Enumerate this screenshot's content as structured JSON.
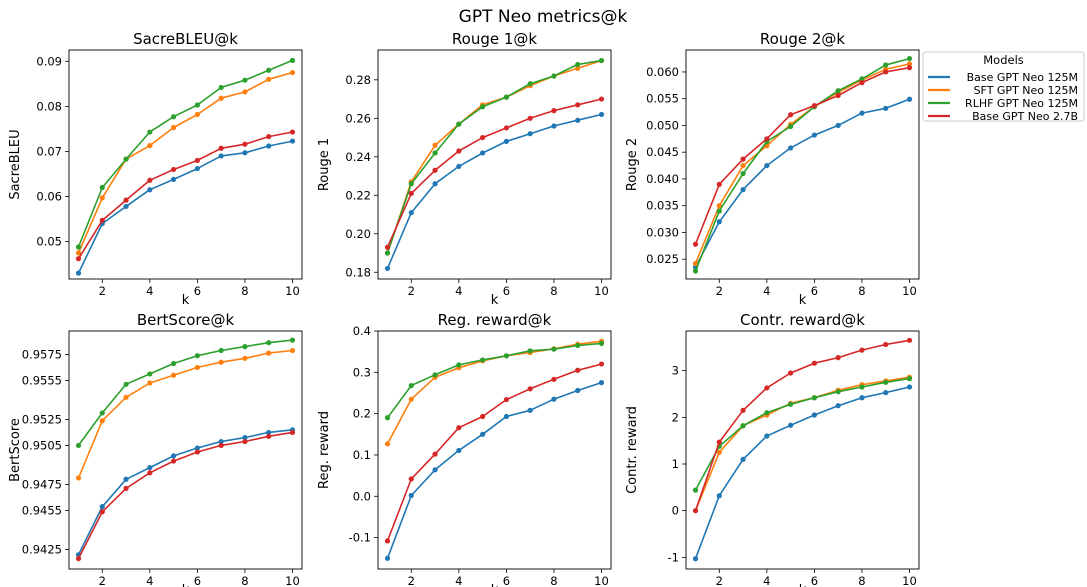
{
  "figure": {
    "suptitle": "GPT Neo metrics@k"
  },
  "legend": {
    "title": "Models",
    "placement": "right of top-right panel",
    "entries": [
      {
        "label": "Base GPT Neo 125M",
        "color": "#1f77b4"
      },
      {
        "label": "SFT GPT Neo 125M",
        "color": "#ff7f0e"
      },
      {
        "label": "RLHF GPT Neo 125M",
        "color": "#2ca02c"
      },
      {
        "label": "Base GPT Neo 2.7B",
        "color": "#d62728"
      }
    ]
  },
  "chart_data": [
    {
      "type": "line",
      "title": "SacreBLEU@k",
      "xlabel": "k",
      "ylabel": "SacreBLEU",
      "x": [
        1,
        2,
        3,
        4,
        5,
        6,
        7,
        8,
        9,
        10
      ],
      "xticks": [
        2,
        4,
        6,
        8,
        10
      ],
      "xlim": [
        0.6,
        10.4
      ],
      "ylim": [
        0.0417,
        0.0925
      ],
      "yticks": [
        0.05,
        0.06,
        0.07,
        0.08,
        0.09
      ],
      "ytick_labels": [
        "0.05",
        "0.06",
        "0.07",
        "0.08",
        "0.09"
      ],
      "series": [
        {
          "name": "Base GPT Neo 125M",
          "values": [
            0.043,
            0.054,
            0.0578,
            0.0615,
            0.0638,
            0.0662,
            0.069,
            0.0697,
            0.0712,
            0.0723
          ]
        },
        {
          "name": "SFT GPT Neo 125M",
          "values": [
            0.0475,
            0.0597,
            0.0683,
            0.0713,
            0.0753,
            0.0782,
            0.0818,
            0.0832,
            0.086,
            0.0875
          ]
        },
        {
          "name": "RLHF GPT Neo 125M",
          "values": [
            0.0488,
            0.062,
            0.0683,
            0.0743,
            0.0777,
            0.0803,
            0.0842,
            0.0858,
            0.088,
            0.0902
          ]
        },
        {
          "name": "Base GPT Neo 2.7B",
          "values": [
            0.0462,
            0.0547,
            0.0592,
            0.0636,
            0.066,
            0.068,
            0.0707,
            0.0716,
            0.0733,
            0.0743
          ]
        }
      ]
    },
    {
      "type": "line",
      "title": "Rouge 1@k",
      "xlabel": "k",
      "ylabel": "Rouge 1",
      "x": [
        1,
        2,
        3,
        4,
        5,
        6,
        7,
        8,
        9,
        10
      ],
      "xticks": [
        2,
        4,
        6,
        8,
        10
      ],
      "xlim": [
        0.6,
        10.4
      ],
      "ylim": [
        0.1765,
        0.2955
      ],
      "yticks": [
        0.18,
        0.2,
        0.22,
        0.24,
        0.26,
        0.28
      ],
      "ytick_labels": [
        "0.18",
        "0.20",
        "0.22",
        "0.24",
        "0.26",
        "0.28"
      ],
      "series": [
        {
          "name": "Base GPT Neo 125M",
          "values": [
            0.182,
            0.211,
            0.226,
            0.235,
            0.242,
            0.248,
            0.252,
            0.256,
            0.259,
            0.262
          ]
        },
        {
          "name": "SFT GPT Neo 125M",
          "values": [
            0.19,
            0.227,
            0.246,
            0.257,
            0.267,
            0.271,
            0.277,
            0.282,
            0.286,
            0.29
          ]
        },
        {
          "name": "RLHF GPT Neo 125M",
          "values": [
            0.19,
            0.226,
            0.242,
            0.257,
            0.266,
            0.271,
            0.278,
            0.282,
            0.288,
            0.29
          ]
        },
        {
          "name": "Base GPT Neo 2.7B",
          "values": [
            0.193,
            0.221,
            0.233,
            0.243,
            0.25,
            0.255,
            0.26,
            0.264,
            0.267,
            0.27
          ]
        }
      ]
    },
    {
      "type": "line",
      "title": "Rouge 2@k",
      "xlabel": "k",
      "ylabel": "Rouge 2",
      "x": [
        1,
        2,
        3,
        4,
        5,
        6,
        7,
        8,
        9,
        10
      ],
      "xticks": [
        2,
        4,
        6,
        8,
        10
      ],
      "xlim": [
        0.6,
        10.4
      ],
      "ylim": [
        0.0213,
        0.0641
      ],
      "yticks": [
        0.025,
        0.03,
        0.035,
        0.04,
        0.045,
        0.05,
        0.055,
        0.06
      ],
      "ytick_labels": [
        "0.025",
        "0.030",
        "0.035",
        "0.040",
        "0.045",
        "0.050",
        "0.055",
        "0.060"
      ],
      "series": [
        {
          "name": "Base GPT Neo 125M",
          "values": [
            0.0235,
            0.032,
            0.038,
            0.0425,
            0.0458,
            0.0482,
            0.05,
            0.0523,
            0.0532,
            0.0549
          ]
        },
        {
          "name": "SFT GPT Neo 125M",
          "values": [
            0.0242,
            0.035,
            0.0425,
            0.0462,
            0.0502,
            0.0535,
            0.0562,
            0.0585,
            0.0605,
            0.0615
          ]
        },
        {
          "name": "RLHF GPT Neo 125M",
          "values": [
            0.0228,
            0.034,
            0.041,
            0.047,
            0.0498,
            0.0535,
            0.0565,
            0.0587,
            0.0613,
            0.0625
          ]
        },
        {
          "name": "Base GPT Neo 2.7B",
          "values": [
            0.0278,
            0.039,
            0.0437,
            0.0475,
            0.052,
            0.0537,
            0.0556,
            0.058,
            0.06,
            0.0608
          ]
        }
      ]
    },
    {
      "type": "line",
      "title": "BertScore@k",
      "xlabel": "k",
      "ylabel": "BertScore",
      "x": [
        1,
        2,
        3,
        4,
        5,
        6,
        7,
        8,
        9,
        10
      ],
      "xticks": [
        2,
        4,
        6,
        8,
        10
      ],
      "xlim": [
        0.6,
        10.4
      ],
      "ylim": [
        0.941,
        0.9593
      ],
      "yticks": [
        0.9425,
        0.9455,
        0.9475,
        0.9505,
        0.9525,
        0.9555,
        0.9575
      ],
      "ytick_labels": [
        "0.9425",
        "0.9455",
        "0.9475",
        "0.9505",
        "0.9525",
        "0.9555",
        "0.9575"
      ],
      "series": [
        {
          "name": "Base GPT Neo 125M",
          "values": [
            0.9421,
            0.9458,
            0.9479,
            0.9488,
            0.9497,
            0.9503,
            0.9508,
            0.9511,
            0.9515,
            0.9517
          ]
        },
        {
          "name": "SFT GPT Neo 125M",
          "values": [
            0.948,
            0.9524,
            0.9542,
            0.9553,
            0.9559,
            0.9565,
            0.9569,
            0.9572,
            0.9576,
            0.9578
          ]
        },
        {
          "name": "RLHF GPT Neo 125M",
          "values": [
            0.9505,
            0.953,
            0.9552,
            0.956,
            0.9568,
            0.9574,
            0.9578,
            0.9581,
            0.9584,
            0.9586
          ]
        },
        {
          "name": "Base GPT Neo 2.7B",
          "values": [
            0.9418,
            0.9454,
            0.9472,
            0.9484,
            0.9493,
            0.95,
            0.9505,
            0.9508,
            0.9512,
            0.9515
          ]
        }
      ]
    },
    {
      "type": "line",
      "title": "Reg. reward@k",
      "xlabel": "k",
      "ylabel": "Reg. reward",
      "x": [
        1,
        2,
        3,
        4,
        5,
        6,
        7,
        8,
        9,
        10
      ],
      "xticks": [
        2,
        4,
        6,
        8,
        10
      ],
      "xlim": [
        0.6,
        10.4
      ],
      "ylim": [
        -0.176,
        0.4
      ],
      "yticks": [
        -0.1,
        0.0,
        0.1,
        0.2,
        0.3,
        0.4
      ],
      "ytick_labels": [
        "-0.1",
        "0.0",
        "0.1",
        "0.2",
        "0.3",
        "0.4"
      ],
      "series": [
        {
          "name": "Base GPT Neo 125M",
          "values": [
            -0.15,
            0.002,
            0.064,
            0.111,
            0.15,
            0.193,
            0.208,
            0.235,
            0.256,
            0.275
          ]
        },
        {
          "name": "SFT GPT Neo 125M",
          "values": [
            0.127,
            0.235,
            0.288,
            0.311,
            0.328,
            0.34,
            0.348,
            0.357,
            0.368,
            0.375
          ]
        },
        {
          "name": "RLHF GPT Neo 125M",
          "values": [
            0.19,
            0.268,
            0.294,
            0.318,
            0.33,
            0.34,
            0.352,
            0.356,
            0.365,
            0.37
          ]
        },
        {
          "name": "Base GPT Neo 2.7B",
          "values": [
            -0.108,
            0.042,
            0.102,
            0.166,
            0.193,
            0.234,
            0.26,
            0.283,
            0.305,
            0.32
          ]
        }
      ]
    },
    {
      "type": "line",
      "title": "Contr. reward@k",
      "xlabel": "k",
      "ylabel": "Contr. reward",
      "x": [
        1,
        2,
        3,
        4,
        5,
        6,
        7,
        8,
        9,
        10
      ],
      "xticks": [
        2,
        4,
        6,
        8,
        10
      ],
      "xlim": [
        0.6,
        10.4
      ],
      "ylim": [
        -1.25,
        3.85
      ],
      "yticks": [
        -1,
        0,
        1,
        2,
        3
      ],
      "ytick_labels": [
        "-1",
        "0",
        "1",
        "2",
        "3"
      ],
      "series": [
        {
          "name": "Base GPT Neo 125M",
          "values": [
            -1.03,
            0.32,
            1.1,
            1.6,
            1.83,
            2.05,
            2.25,
            2.42,
            2.53,
            2.65
          ]
        },
        {
          "name": "SFT GPT Neo 125M",
          "values": [
            0.0,
            1.25,
            1.82,
            2.05,
            2.3,
            2.42,
            2.58,
            2.7,
            2.78,
            2.86
          ]
        },
        {
          "name": "RLHF GPT Neo 125M",
          "values": [
            0.44,
            1.38,
            1.82,
            2.1,
            2.28,
            2.42,
            2.55,
            2.65,
            2.75,
            2.83
          ]
        },
        {
          "name": "Base GPT Neo 2.7B",
          "values": [
            0.0,
            1.47,
            2.15,
            2.63,
            2.95,
            3.16,
            3.28,
            3.44,
            3.56,
            3.65
          ]
        }
      ]
    }
  ]
}
